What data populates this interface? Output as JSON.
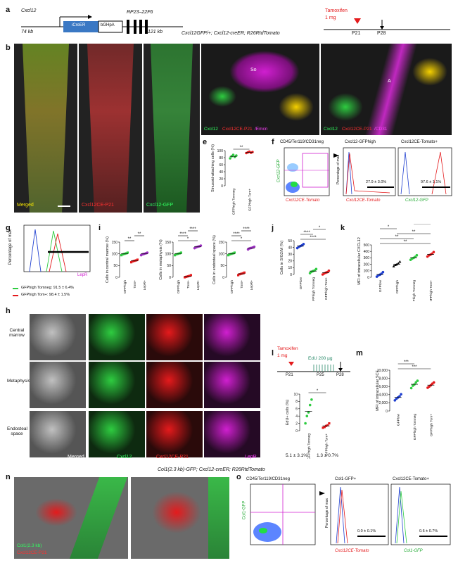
{
  "panel_labels": {
    "a": "a",
    "b": "b",
    "c": "c",
    "d": "d",
    "e": "e",
    "f": "f",
    "g": "g",
    "h": "h",
    "i": "i",
    "j": "j",
    "k": "k",
    "l": "l",
    "m": "m",
    "n": "n",
    "o": "o"
  },
  "panel_a": {
    "gene": "Cxcl12",
    "left_kb": "74 kb",
    "bac": "RP23–22F6",
    "right_kb": "121 kb",
    "cassette1": "iCreER",
    "cassette2": "bGHpA",
    "mouse_line": "Cxcl12GFP/+; Cxcl12-creER; R26RtdTomato",
    "tamoxifen": "Tamoxifen",
    "dose": "1 mg",
    "p21": "P21",
    "p28": "P28"
  },
  "panel_b": {
    "merged": "Merged",
    "red": "Cxcl12CE-P21",
    "green": "Cxcl12-GFP"
  },
  "panel_c": {
    "legend_green": "Cxcl12",
    "legend_red": "Cxcl12CE-P21",
    "legend_mag": "/Emcn",
    "so": "So"
  },
  "panel_d": {
    "legend_green": "Cxcl12",
    "legend_red": "Cxcl12CE-P21",
    "legend_mag": "/CD31",
    "a": "A"
  },
  "panel_e": {
    "ylabel": "Sinusoid-attaching cells (%)",
    "sig": "**",
    "chart_data": {
      "type": "scatter",
      "categories": [
        "GFPhigh Tomneg",
        "GFPhigh Tom+"
      ],
      "ylim": [
        0,
        100
      ],
      "yticks": [
        "0",
        "20",
        "40",
        "60",
        "80",
        "100"
      ],
      "series": [
        {
          "values": [
            [
              78,
              84,
              88,
              82,
              86
            ],
            [
              93,
              95,
              97,
              94,
              96
            ]
          ]
        }
      ]
    }
  },
  "panel_f": {
    "gate_title": "CD45/Ter119/CD31neg",
    "y_axis": "Cxcl12-GFP",
    "x_axis": "Cxcl12CE-Tomato",
    "hist1_title": "Cxcl12-GFPhigh",
    "hist2_title": "Cxcl12CE-Tomato+",
    "hist_y": "Percentage of max",
    "pct1": "27.9 ± 3.0%",
    "pct2": "97.6 ± 1.1%",
    "hist1_x": "Cxcl12CE-Tomato",
    "hist2_x": "Cxcl12-GFP"
  },
  "panel_g": {
    "ylabel": "Percentage of max",
    "xlabel": "LepR",
    "legend1": "GFPhigh Tomneg: 91.5 ± 6.4%",
    "legend2": "GFPhigh Tom+: 98.4 ± 1.5%"
  },
  "panel_h": {
    "rows": [
      "Central marrow",
      "Metaphysis",
      "Endosteal space"
    ],
    "cols": [
      "Merged",
      "Cxcl12",
      "Cxcl12CE-P21",
      "LepR"
    ]
  },
  "panel_i": {
    "charts": [
      {
        "ylabel": "Cells in central marrow (%)",
        "ylim": [
          0,
          150
        ],
        "yticks": [
          "0",
          "50",
          "100",
          "150"
        ],
        "categories": [
          "GFPhigh",
          "Tom+",
          "LepR+"
        ],
        "means": [
          100,
          70,
          100
        ],
        "sig": [
          "**",
          "**"
        ]
      },
      {
        "ylabel": "Cells in metaphysis (%)",
        "ylim": [
          0,
          150
        ],
        "yticks": [
          "0",
          "50",
          "100",
          "150"
        ],
        "categories": [
          "GFPhigh",
          "Tom+",
          "LepR+"
        ],
        "means": [
          100,
          4,
          130
        ],
        "sig": [
          "*",
          "****",
          "****"
        ]
      },
      {
        "ylabel": "Cells in endosteal space (%)",
        "ylim": [
          0,
          150
        ],
        "yticks": [
          "0",
          "50",
          "100",
          "150"
        ],
        "categories": [
          "GFPhigh",
          "Tom+",
          "LepR+"
        ],
        "means": [
          100,
          15,
          125
        ],
        "sig": [
          "*",
          "****",
          "****"
        ]
      }
    ]
  },
  "panel_j": {
    "ylabel": "Cells in S/G2/M (%)",
    "yticks": [
      "0",
      "10",
      "20",
      "30",
      "40",
      "50"
    ],
    "sig": [
      "****",
      "****",
      "*"
    ],
    "chart_data": {
      "type": "scatter",
      "categories": [
        "GFPlow",
        "GFPhigh Tomneg",
        "GFPhigh Tom+"
      ],
      "ylim": [
        0,
        50
      ],
      "means": [
        42,
        5,
        2.5
      ]
    }
  },
  "panel_k": {
    "ylabel": "MFI of intracellular CXCL12",
    "yticks": [
      "0",
      "100",
      "200",
      "300",
      "400",
      "500"
    ],
    "sig": [
      "**",
      "**",
      "**",
      "*",
      "*"
    ],
    "chart_data": {
      "type": "scatter",
      "categories": [
        "GFPlow",
        "GFPhigh",
        "GFPhigh Tomneg",
        "GFPhigh Tom+"
      ],
      "ylim": [
        0,
        500
      ],
      "means": [
        40,
        200,
        300,
        350
      ]
    }
  },
  "panel_l": {
    "tamoxifen": "Tamoxifen",
    "dose": "1 mg",
    "edu": "EdU 200 µg",
    "p21": "P21",
    "p25": "P25",
    "p28": "P28",
    "ylabel": "EdU+ cells (%)",
    "yticks": [
      "0",
      "2",
      "4",
      "6",
      "8",
      "10"
    ],
    "sig": "*",
    "stat1": "5.1 ± 3.1%",
    "stat2": "1.3 ± 0.7%",
    "chart_data": {
      "type": "scatter",
      "categories": [
        "GFPhigh Tomneg",
        "GFPhigh Tom+"
      ],
      "ylim": [
        0,
        10
      ],
      "means": [
        5.1,
        1.3
      ]
    }
  },
  "panel_m": {
    "ylabel": "MFI of intracellular SCF",
    "yticks": [
      "0",
      "2,000",
      "4,000",
      "6,000",
      "8,000",
      "10,000"
    ],
    "sig": [
      "***",
      "***"
    ],
    "chart_data": {
      "type": "scatter",
      "categories": [
        "GFPlow",
        "GFPhigh Tomneg",
        "GFPhigh Tom+"
      ],
      "ylim": [
        0,
        10000
      ],
      "means": [
        3300,
        6500,
        6300
      ]
    }
  },
  "panel_n": {
    "title": "Col1(2.3 kb)-GFP; Cxcl12-creER; R26RtdTomato",
    "legend_green": "Col1(2.3 kb)",
    "legend_red": "Cxcl12CE-P21"
  },
  "panel_o": {
    "gate_title": "CD45/Ter119/CD31neg",
    "y_axis": "Col1-GFP",
    "hist1_title": "Col1-GFP+",
    "hist2_title": "Cxcl12CE-Tomato+",
    "hist_y": "Percentage of max",
    "pct1": "0.0 ± 0.1%",
    "pct2": "0.6 ± 0.7%",
    "hist1_x": "Cxcl12CE-Tomato",
    "hist2_x": "Col1-GFP"
  },
  "colors": {
    "green": "#2ecc40",
    "red": "#e41a1c",
    "magenta": "#d01fd0",
    "blue": "#1f3fd0",
    "purple": "#9b30c0"
  }
}
